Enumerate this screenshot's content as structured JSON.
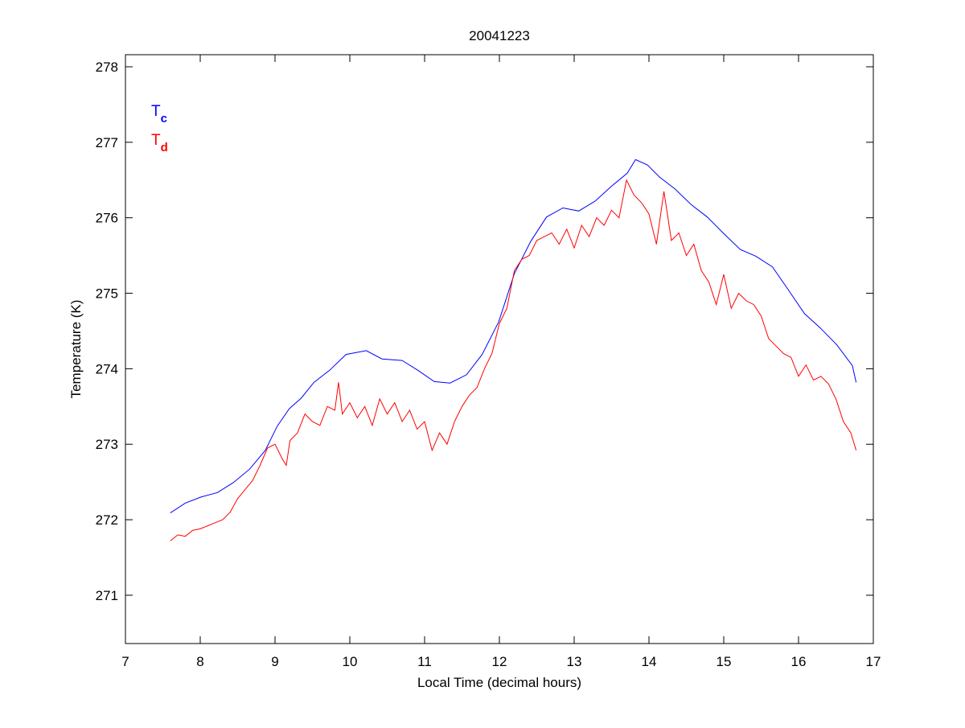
{
  "chart_data": {
    "type": "line",
    "title": "20041223",
    "xlabel": "Local Time (decimal hours)",
    "ylabel": "Temperature (K)",
    "xlim": [
      7,
      17
    ],
    "ylim": [
      270.36,
      278.16
    ],
    "xticks": [
      7,
      8,
      9,
      10,
      11,
      12,
      13,
      14,
      15,
      16,
      17
    ],
    "yticks": [
      271,
      272,
      273,
      274,
      275,
      276,
      277,
      278
    ],
    "grid": false,
    "legend": {
      "placement": "top-left",
      "entries": [
        {
          "base": "T",
          "sub": "c",
          "color": "#0000ff"
        },
        {
          "base": "T",
          "sub": "d",
          "color": "#ff0000"
        }
      ]
    },
    "series": [
      {
        "name": "Tc",
        "color": "#0000ff",
        "x": [
          7.6,
          7.8,
          8.01,
          8.23,
          8.44,
          8.66,
          8.87,
          9.03,
          9.19,
          9.35,
          9.52,
          9.73,
          9.95,
          10.22,
          10.43,
          10.7,
          10.91,
          11.13,
          11.34,
          11.56,
          11.77,
          11.99,
          12.2,
          12.42,
          12.63,
          12.85,
          13.06,
          13.28,
          13.49,
          13.71,
          13.82,
          13.98,
          14.14,
          14.35,
          14.57,
          14.78,
          15.0,
          15.22,
          15.43,
          15.65,
          15.86,
          16.08,
          16.29,
          16.51,
          16.72,
          16.77
        ],
        "y": [
          272.09,
          272.22,
          272.3,
          272.36,
          272.49,
          272.67,
          272.92,
          273.24,
          273.47,
          273.61,
          273.82,
          273.98,
          274.19,
          274.24,
          274.13,
          274.11,
          273.98,
          273.83,
          273.81,
          273.92,
          274.19,
          274.62,
          275.26,
          275.69,
          276.01,
          276.13,
          276.09,
          276.22,
          276.41,
          276.59,
          276.77,
          276.7,
          276.54,
          276.38,
          276.17,
          276.01,
          275.79,
          275.58,
          275.49,
          275.35,
          275.05,
          274.73,
          274.54,
          274.32,
          274.04,
          273.82
        ]
      },
      {
        "name": "Td",
        "color": "#ff0000",
        "x": [
          7.6,
          7.7,
          7.8,
          7.9,
          8.0,
          8.1,
          8.2,
          8.3,
          8.4,
          8.5,
          8.6,
          8.7,
          8.8,
          8.9,
          9.0,
          9.1,
          9.15,
          9.2,
          9.3,
          9.4,
          9.5,
          9.6,
          9.7,
          9.8,
          9.85,
          9.9,
          10.0,
          10.1,
          10.2,
          10.3,
          10.4,
          10.5,
          10.6,
          10.7,
          10.8,
          10.9,
          11.0,
          11.1,
          11.2,
          11.3,
          11.4,
          11.5,
          11.6,
          11.7,
          11.8,
          11.9,
          12.0,
          12.1,
          12.2,
          12.3,
          12.4,
          12.5,
          12.6,
          12.7,
          12.8,
          12.9,
          13.0,
          13.1,
          13.2,
          13.3,
          13.4,
          13.5,
          13.6,
          13.7,
          13.8,
          13.9,
          14.0,
          14.1,
          14.2,
          14.3,
          14.4,
          14.5,
          14.6,
          14.7,
          14.8,
          14.9,
          15.0,
          15.1,
          15.2,
          15.3,
          15.4,
          15.5,
          15.6,
          15.7,
          15.8,
          15.9,
          16.0,
          16.1,
          16.2,
          16.3,
          16.4,
          16.5,
          16.6,
          16.7,
          16.77
        ],
        "y": [
          271.72,
          271.8,
          271.78,
          271.86,
          271.88,
          271.92,
          271.96,
          272.0,
          272.1,
          272.28,
          272.4,
          272.52,
          272.72,
          272.95,
          273.0,
          272.8,
          272.72,
          273.05,
          273.15,
          273.4,
          273.3,
          273.25,
          273.5,
          273.45,
          273.82,
          273.4,
          273.55,
          273.35,
          273.5,
          273.25,
          273.6,
          273.4,
          273.55,
          273.3,
          273.45,
          273.2,
          273.3,
          272.92,
          273.15,
          273.0,
          273.3,
          273.5,
          273.65,
          273.75,
          274.0,
          274.2,
          274.6,
          274.8,
          275.3,
          275.45,
          275.5,
          275.7,
          275.75,
          275.8,
          275.65,
          275.85,
          275.6,
          275.9,
          275.75,
          276.0,
          275.9,
          276.1,
          276.0,
          276.5,
          276.3,
          276.2,
          276.05,
          275.65,
          276.35,
          275.7,
          275.8,
          275.5,
          275.65,
          275.3,
          275.15,
          274.85,
          275.25,
          274.8,
          275.0,
          274.9,
          274.85,
          274.7,
          274.4,
          274.3,
          274.2,
          274.15,
          273.9,
          274.05,
          273.85,
          273.9,
          273.8,
          273.6,
          273.3,
          273.15,
          272.92
        ]
      }
    ]
  }
}
